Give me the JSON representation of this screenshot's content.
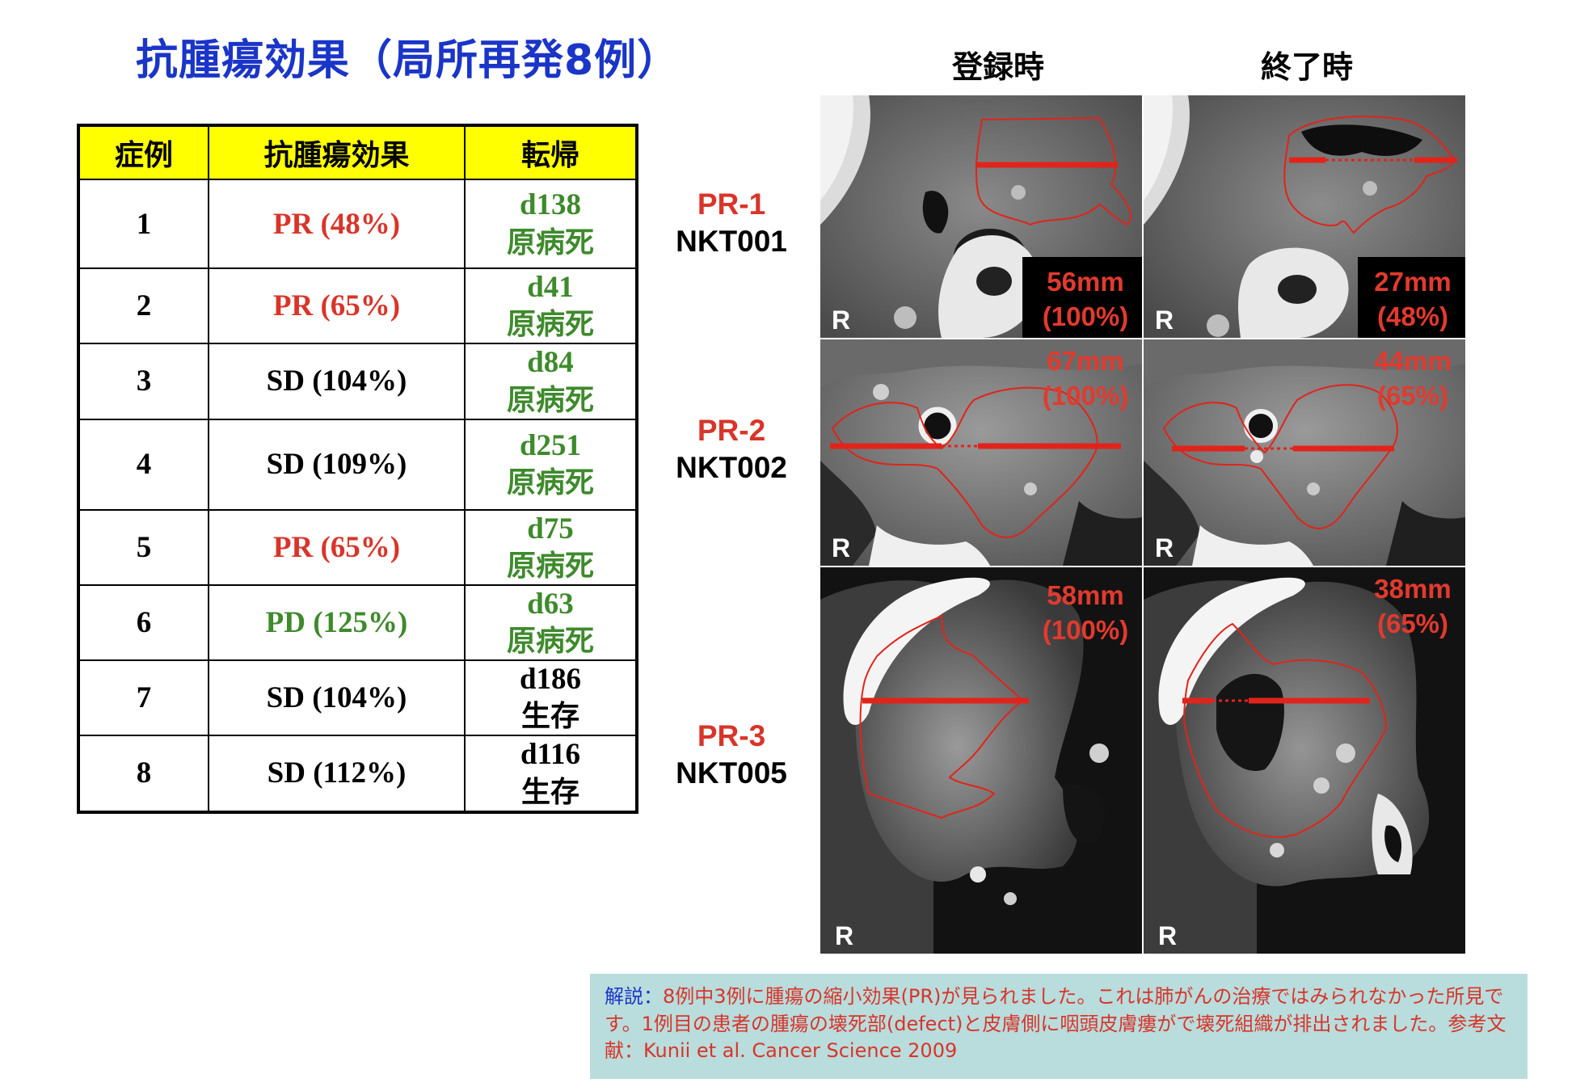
{
  "title": "抗腫瘍効果（局所再発8例）",
  "image_columns": {
    "baseline": "登録時",
    "end": "終了時"
  },
  "table": {
    "headers": [
      "症例",
      "抗腫瘍効果",
      "転帰"
    ],
    "rows": [
      {
        "case": "1",
        "effect": "PR (48%)",
        "effect_color": "#d8352a",
        "day": "d138",
        "outcome": "原病死",
        "outcome_color": "#3e8a2c"
      },
      {
        "case": "2",
        "effect": "PR (65%)",
        "effect_color": "#d8352a",
        "day": "d41",
        "outcome": "原病死",
        "outcome_color": "#3e8a2c"
      },
      {
        "case": "3",
        "effect": "SD (104%)",
        "effect_color": "#000000",
        "day": "d84",
        "outcome": "原病死",
        "outcome_color": "#3e8a2c"
      },
      {
        "case": "4",
        "effect": "SD (109%)",
        "effect_color": "#000000",
        "day": "d251",
        "outcome": "原病死",
        "outcome_color": "#3e8a2c"
      },
      {
        "case": "5",
        "effect": "PR (65%)",
        "effect_color": "#d8352a",
        "day": "d75",
        "outcome": "原病死",
        "outcome_color": "#3e8a2c"
      },
      {
        "case": "6",
        "effect": "PD (125%)",
        "effect_color": "#3e8a2c",
        "day": "d63",
        "outcome": "原病死",
        "outcome_color": "#3e8a2c"
      },
      {
        "case": "7",
        "effect": "SD (104%)",
        "effect_color": "#000000",
        "day": "d186",
        "outcome": "生存",
        "outcome_color": "#000000"
      },
      {
        "case": "8",
        "effect": "SD (112%)",
        "effect_color": "#000000",
        "day": "d116",
        "outcome": "生存",
        "outcome_color": "#000000"
      }
    ]
  },
  "cases": [
    {
      "label": "PR-1",
      "id": "NKT001",
      "before_size": "56mm",
      "before_pct": "(100%)",
      "after_size": "27mm",
      "after_pct": "(48%)",
      "orientation": "R"
    },
    {
      "label": "PR-2",
      "id": "NKT002",
      "before_size": "67mm",
      "before_pct": "(100%)",
      "after_size": "44mm",
      "after_pct": "(65%)",
      "orientation": "R"
    },
    {
      "label": "PR-3",
      "id": "NKT005",
      "before_size": "58mm",
      "before_pct": "(100%)",
      "after_size": "38mm",
      "after_pct": "(65%)",
      "orientation": "R"
    }
  ],
  "note": {
    "lead": "解説：",
    "text": "8例中3例に腫瘍の縮小効果(PR)が見られました。これは肺がんの治療ではみられなかった所見です。1例目の患者の腫瘍の壊死部(defect)と皮膚側に咽頭皮膚瘻がで壊死組織が排出されました。参考文献：Kunii et al. Cancer Science 2009"
  },
  "colors": {
    "title": "#1a35c8",
    "header_bg": "#ffff00",
    "pr_red": "#d8352a",
    "green": "#3e8a2c",
    "note_bg": "#b9dcdc"
  }
}
